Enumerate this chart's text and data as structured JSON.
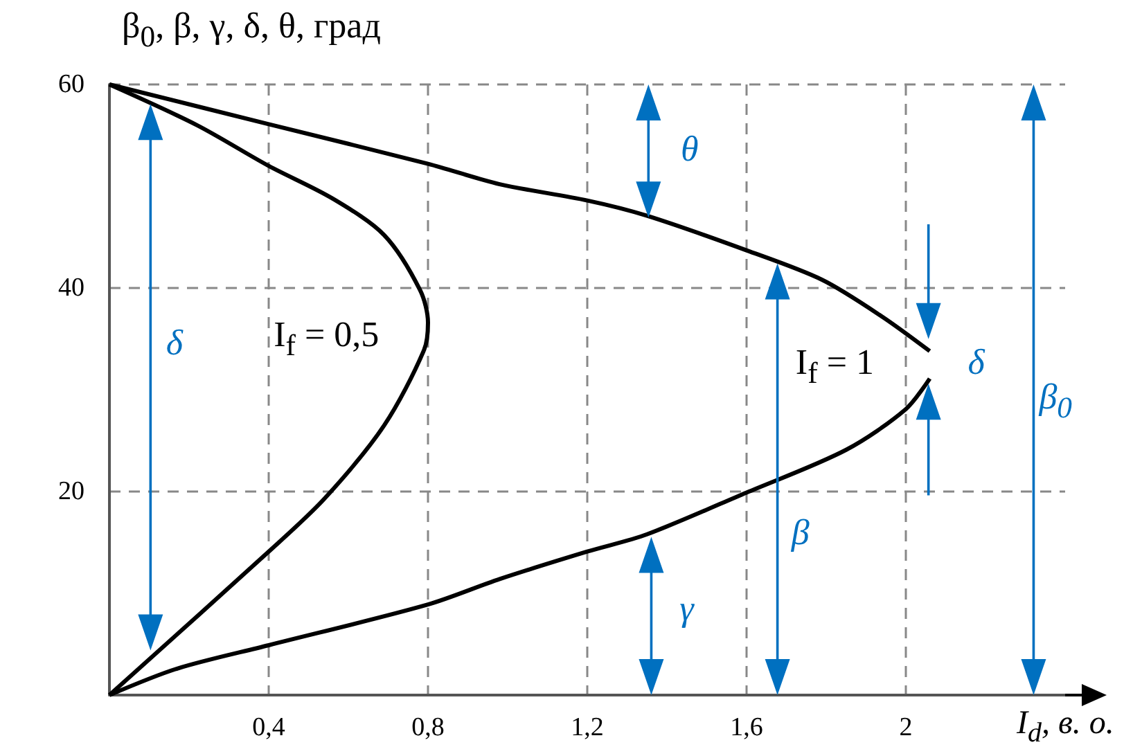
{
  "chart_data": {
    "type": "line",
    "ylabel": "β$_{0}$, β, γ, δ, θ, град",
    "xlabel": "I$_{d}$, в. о.",
    "xlim": [
      0,
      2.4
    ],
    "ylim": [
      0,
      60
    ],
    "xticks": [
      {
        "value": 0.4,
        "label": "0,4"
      },
      {
        "value": 0.8,
        "label": "0,8"
      },
      {
        "value": 1.2,
        "label": "1,2"
      },
      {
        "value": 1.6,
        "label": "1,6"
      },
      2
    ],
    "yticks": [
      20,
      40,
      60
    ],
    "grid": true,
    "marker": "none",
    "series": [
      {
        "name": "I$_{f}$ = 0,5",
        "color": "#000000",
        "x": [
          0,
          0.4,
          0.54,
          0.69,
          0.79,
          0.8,
          0.78,
          0.69,
          0.56,
          0.4,
          0.22,
          0
        ],
        "values": [
          0,
          14.1,
          19.3,
          26.5,
          33.9,
          36.6,
          39.8,
          45.2,
          48.8,
          52.0,
          56,
          60
        ]
      },
      {
        "name": "I$_{f}$ = 1",
        "color": "#000000",
        "x": [
          0,
          0.17,
          0.4,
          0.8,
          0.98,
          1.2,
          1.35,
          1.6,
          1.85,
          2.0,
          2.06,
          null,
          2.06,
          1.94,
          1.79,
          1.6,
          1.35,
          1.2,
          0.98,
          0.8,
          0.4,
          0
        ],
        "values": [
          0,
          2.6,
          4.9,
          8.9,
          11.4,
          14.1,
          15.8,
          19.9,
          24.1,
          28.1,
          31.1,
          null,
          33.8,
          37.2,
          40.8,
          43.7,
          47.1,
          48.6,
          50.2,
          52.2,
          56.1,
          60
        ]
      }
    ],
    "annotations": [
      "θ",
      "δ",
      "β",
      "γ",
      "β$_{0}$",
      "δ"
    ]
  }
}
